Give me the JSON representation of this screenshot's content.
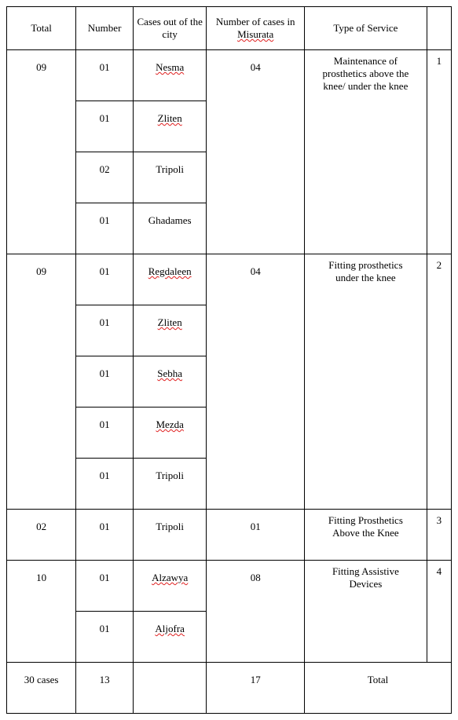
{
  "headers": {
    "total": "Total",
    "number": "Number",
    "cases_out": "Cases out of the city",
    "misurata": "Number of cases in",
    "misurata_city": "Misurata",
    "service": "Type of Service"
  },
  "groups": [
    {
      "idx": "1",
      "total": "09",
      "misurata": "04",
      "service_lines": [
        "Maintenance of",
        "prosthetics above the",
        "knee/ under the knee"
      ],
      "rows": [
        {
          "number": "01",
          "city": "Nesma",
          "squiggle": true
        },
        {
          "number": "01",
          "city": "Zliten",
          "squiggle": true
        },
        {
          "number": "02",
          "city": "Tripoli",
          "squiggle": false
        },
        {
          "number": "01",
          "city": "Ghadames",
          "squiggle": false
        }
      ]
    },
    {
      "idx": "2",
      "total": "09",
      "misurata": "04",
      "service_lines": [
        "Fitting prosthetics",
        "under the knee"
      ],
      "rows": [
        {
          "number": "01",
          "city": "Regdaleen",
          "squiggle": true
        },
        {
          "number": "01",
          "city": "Zliten",
          "squiggle": true
        },
        {
          "number": "01",
          "city": "Sebha",
          "squiggle": true
        },
        {
          "number": "01",
          "city": "Mezda",
          "squiggle": true
        },
        {
          "number": "01",
          "city": "Tripoli",
          "squiggle": false
        }
      ]
    },
    {
      "idx": "3",
      "total": "02",
      "misurata": "01",
      "service_lines": [
        "Fitting Prosthetics",
        "Above the Knee"
      ],
      "rows": [
        {
          "number": "01",
          "city": "Tripoli",
          "squiggle": false
        }
      ]
    },
    {
      "idx": "4",
      "total": "10",
      "misurata": "08",
      "service_lines": [
        "Fitting Assistive",
        "Devices"
      ],
      "rows": [
        {
          "number": "01",
          "city": "Alzawya",
          "squiggle": true
        },
        {
          "number": "01",
          "city": "Aljofra",
          "squiggle": true
        }
      ]
    }
  ],
  "footer": {
    "total_cases": "30 cases",
    "number_sum": "13",
    "misurata_sum": "17",
    "label": "Total"
  }
}
